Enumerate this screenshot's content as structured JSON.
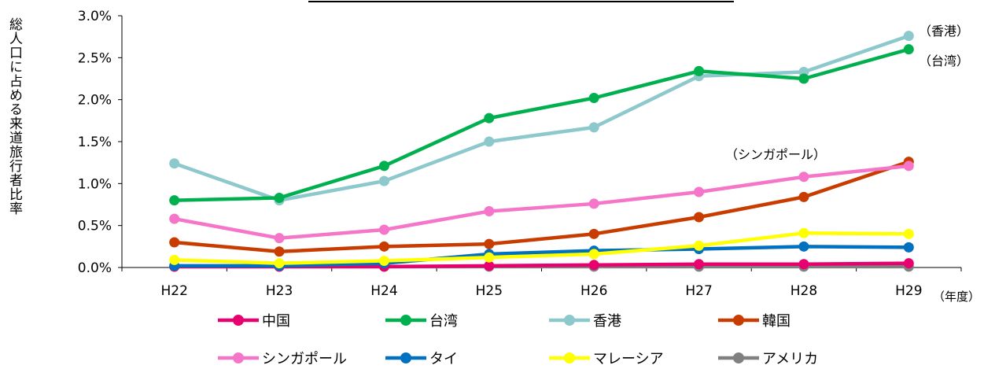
{
  "chart_data": {
    "type": "line",
    "title": "",
    "ylabel": "総人口に占める来道旅行者比率",
    "xlabel": "",
    "x_unit_label": "（年度）",
    "categories": [
      "H22",
      "H23",
      "H24",
      "H25",
      "H26",
      "H27",
      "H28",
      "H29"
    ],
    "ylim": [
      0,
      0.03
    ],
    "yticks": [
      "0.0%",
      "0.5%",
      "1.0%",
      "1.5%",
      "2.0%",
      "2.5%",
      "3.0%"
    ],
    "grid": false,
    "legend_placement": "bottom",
    "series": [
      {
        "name": "中国",
        "color": "#e8006f",
        "values": [
          0.0001,
          0.0001,
          0.0001,
          0.0002,
          0.0003,
          0.0004,
          0.0004,
          0.0005
        ]
      },
      {
        "name": "台湾",
        "color": "#00b04f",
        "values": [
          0.008,
          0.0083,
          0.0121,
          0.0178,
          0.0202,
          0.0234,
          0.0225,
          0.026
        ]
      },
      {
        "name": "香港",
        "color": "#8cc8cc",
        "values": [
          0.0124,
          0.008,
          0.0103,
          0.015,
          0.0167,
          0.0228,
          0.0233,
          0.0276
        ]
      },
      {
        "name": "韓国",
        "color": "#c83c00",
        "values": [
          0.003,
          0.0019,
          0.0025,
          0.0028,
          0.004,
          0.006,
          0.0084,
          0.0126
        ]
      },
      {
        "name": "シンガポール",
        "color": "#f576c8",
        "values": [
          0.0058,
          0.0035,
          0.0045,
          0.0067,
          0.0076,
          0.009,
          0.0108,
          0.0121
        ]
      },
      {
        "name": "タイ",
        "color": "#0070c0",
        "values": [
          0.0002,
          0.0002,
          0.0005,
          0.0016,
          0.002,
          0.0022,
          0.0025,
          0.0024
        ]
      },
      {
        "name": "マレーシア",
        "color": "#ffff00",
        "values": [
          0.0009,
          0.0005,
          0.0008,
          0.0012,
          0.0016,
          0.0026,
          0.0041,
          0.004
        ]
      },
      {
        "name": "アメリカ",
        "color": "#808080",
        "values": [
          0.0001,
          0.0001,
          0.0001,
          0.0001,
          0.0001,
          0.0001,
          0.0001,
          0.0001
        ]
      }
    ],
    "annotations": [
      "（香港）",
      "（台湾）",
      "（シンガポール）"
    ]
  }
}
